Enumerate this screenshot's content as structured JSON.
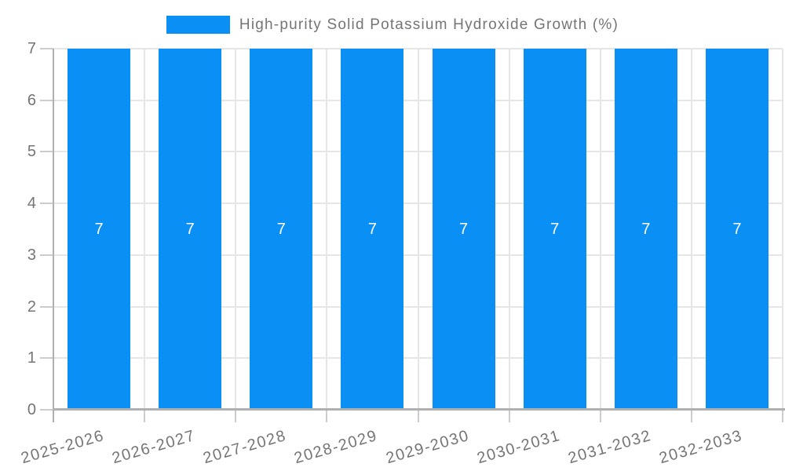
{
  "chart_data": {
    "type": "bar",
    "title": "High-purity Solid Potassium Hydroxide Growth (%)",
    "legend": {
      "position": "top-center",
      "label": "High-purity Solid Potassium Hydroxide Growth (%)"
    },
    "categories": [
      "2025-2026",
      "2026-2027",
      "2027-2028",
      "2028-2029",
      "2029-2030",
      "2030-2031",
      "2031-2032",
      "2032-2033"
    ],
    "series": [
      {
        "name": "High-purity Solid Potassium Hydroxide Growth (%)",
        "values": [
          7,
          7,
          7,
          7,
          7,
          7,
          7,
          7
        ]
      }
    ],
    "bar_value_labels": [
      "7",
      "7",
      "7",
      "7",
      "7",
      "7",
      "7",
      "7"
    ],
    "xlabel": "",
    "ylabel": "",
    "ylim": [
      0,
      7
    ],
    "yticks": [
      0,
      1,
      2,
      3,
      4,
      5,
      6,
      7
    ],
    "grid": true,
    "colors": {
      "bar": "#0a8ff5",
      "text": "#757575",
      "bar_label": "#ffffff",
      "grid": "#e6e6e6",
      "tick": "#cccccc",
      "axis": "#b0b0b0",
      "background": "#ffffff"
    }
  }
}
